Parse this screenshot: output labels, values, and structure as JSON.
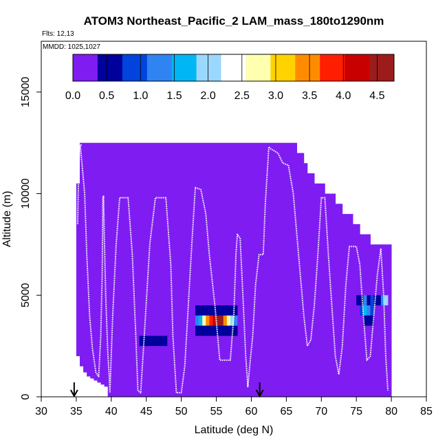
{
  "chart_data": {
    "type": "heatmap",
    "title": "ATOM3 Northeast_Pacific_2 LAM_mass_180to1290nm",
    "flights_text": "Flts: 12,13",
    "mmdd_text": "MMDD: 1025,1027",
    "xlabel": "Latitude (deg N)",
    "ylabel": "Altitude (m)",
    "xlim": [
      30,
      85
    ],
    "ylim": [
      0,
      17500
    ],
    "xticks": [
      30,
      35,
      40,
      45,
      50,
      55,
      60,
      65,
      70,
      75,
      80,
      85
    ],
    "yticks": [
      0,
      5000,
      10000,
      15000
    ],
    "colorbar": {
      "range": [
        0,
        4.75
      ],
      "ticks": [
        0.0,
        0.5,
        1.0,
        1.5,
        2.0,
        2.5,
        3.0,
        3.5,
        4.0,
        4.5
      ],
      "tick_labels": [
        "0.0",
        "0.5",
        "1.0",
        "1.5",
        "2.0",
        "2.5",
        "3.0",
        "3.5",
        "4.0",
        "4.5"
      ],
      "colors": [
        "#7f1cf2",
        "#00009c",
        "#0044dd",
        "#2f84f2",
        "#00b6f5",
        "#9ad8ff",
        "#ffffff",
        "#ffffb0",
        "#ffd200",
        "#ff8c00",
        "#ff1e00",
        "#c80000",
        "#9c1c1c"
      ]
    },
    "arrows_lat": [
      34.7,
      61.2
    ],
    "background_value": 0.05,
    "coverage_columns": [
      [
        35,
        2000,
        10500
      ],
      [
        35.5,
        1500,
        12500
      ],
      [
        36,
        1200,
        12500
      ],
      [
        36.5,
        1000,
        12500
      ],
      [
        37,
        900,
        12500
      ],
      [
        37.5,
        800,
        12500
      ],
      [
        38,
        700,
        12500
      ],
      [
        38.5,
        600,
        12500
      ],
      [
        39,
        500,
        12500
      ],
      [
        39.5,
        0,
        12500
      ],
      [
        40,
        0,
        12500
      ],
      [
        40.5,
        0,
        12500
      ],
      [
        41,
        0,
        12500
      ],
      [
        41.5,
        0,
        12500
      ],
      [
        42,
        0,
        12500
      ],
      [
        42.5,
        0,
        12500
      ],
      [
        43,
        0,
        12500
      ],
      [
        43.5,
        0,
        12500
      ],
      [
        44,
        0,
        12500
      ],
      [
        44.5,
        0,
        12500
      ],
      [
        45,
        0,
        12500
      ],
      [
        45.5,
        0,
        12500
      ],
      [
        46,
        0,
        12500
      ],
      [
        46.5,
        0,
        12500
      ],
      [
        47,
        0,
        12500
      ],
      [
        47.5,
        0,
        12500
      ],
      [
        48,
        0,
        12500
      ],
      [
        48.5,
        0,
        12500
      ],
      [
        49,
        0,
        12500
      ],
      [
        49.5,
        0,
        12500
      ],
      [
        50,
        0,
        12500
      ],
      [
        50.5,
        0,
        12500
      ],
      [
        51,
        0,
        12500
      ],
      [
        51.5,
        0,
        12500
      ],
      [
        52,
        0,
        12500
      ],
      [
        52.5,
        0,
        12500
      ],
      [
        53,
        0,
        12500
      ],
      [
        53.5,
        0,
        12500
      ],
      [
        54,
        0,
        12500
      ],
      [
        54.5,
        0,
        12500
      ],
      [
        55,
        0,
        12500
      ],
      [
        55.5,
        0,
        12500
      ],
      [
        56,
        0,
        12500
      ],
      [
        56.5,
        0,
        12500
      ],
      [
        57,
        0,
        12500
      ],
      [
        57.5,
        0,
        12500
      ],
      [
        58,
        0,
        12500
      ],
      [
        58.5,
        0,
        12500
      ],
      [
        59,
        0,
        12500
      ],
      [
        59.5,
        0,
        12500
      ],
      [
        60,
        0,
        12500
      ],
      [
        60.5,
        0,
        12500
      ],
      [
        61,
        0,
        12500
      ],
      [
        61.5,
        0,
        12500
      ],
      [
        62,
        0,
        12500
      ],
      [
        62.5,
        0,
        12500
      ],
      [
        63,
        0,
        12500
      ],
      [
        63.5,
        0,
        12500
      ],
      [
        64,
        0,
        12500
      ],
      [
        64.5,
        0,
        12500
      ],
      [
        65,
        0,
        12500
      ],
      [
        65.5,
        0,
        12500
      ],
      [
        66,
        0,
        12500
      ],
      [
        66.5,
        0,
        12000
      ],
      [
        67,
        0,
        12000
      ],
      [
        67.5,
        0,
        11500
      ],
      [
        68,
        0,
        11000
      ],
      [
        68.5,
        0,
        11000
      ],
      [
        69,
        0,
        10500
      ],
      [
        69.5,
        0,
        10500
      ],
      [
        70,
        0,
        10500
      ],
      [
        70.5,
        0,
        10000
      ],
      [
        71,
        0,
        10000
      ],
      [
        71.5,
        0,
        10000
      ],
      [
        72,
        0,
        9500
      ],
      [
        72.5,
        0,
        9500
      ],
      [
        73,
        0,
        9000
      ],
      [
        73.5,
        0,
        9000
      ],
      [
        74,
        0,
        9000
      ],
      [
        74.5,
        0,
        8500
      ],
      [
        75,
        0,
        8500
      ],
      [
        75.5,
        0,
        8000
      ],
      [
        76,
        0,
        8000
      ],
      [
        76.5,
        0,
        8000
      ],
      [
        77,
        0,
        7500
      ],
      [
        77.5,
        0,
        7500
      ],
      [
        78,
        0,
        7500
      ],
      [
        78.5,
        0,
        7500
      ],
      [
        79,
        0,
        7500
      ],
      [
        79.5,
        0,
        7500
      ]
    ],
    "hotspots": [
      {
        "lat": 44,
        "alt_min": 2500,
        "alt_max": 3000,
        "value": 0.4
      },
      {
        "lat": 44.5,
        "alt_min": 2500,
        "alt_max": 3000,
        "value": 0.45
      },
      {
        "lat": 45,
        "alt_min": 2500,
        "alt_max": 3000,
        "value": 0.5
      },
      {
        "lat": 45.5,
        "alt_min": 2500,
        "alt_max": 3000,
        "value": 0.45
      },
      {
        "lat": 46,
        "alt_min": 2500,
        "alt_max": 3000,
        "value": 0.5
      },
      {
        "lat": 46.5,
        "alt_min": 2500,
        "alt_max": 3000,
        "value": 0.45
      },
      {
        "lat": 47,
        "alt_min": 2500,
        "alt_max": 3000,
        "value": 0.4
      },
      {
        "lat": 47.5,
        "alt_min": 2500,
        "alt_max": 3000,
        "value": 0.4
      },
      {
        "lat": 48,
        "alt_min": 2500,
        "alt_max": 3000,
        "value": 0.3
      },
      {
        "lat": 52,
        "alt_min": 4000,
        "alt_max": 4500,
        "value": 0.4
      },
      {
        "lat": 52.5,
        "alt_min": 4000,
        "alt_max": 4500,
        "value": 0.45
      },
      {
        "lat": 53,
        "alt_min": 4000,
        "alt_max": 4500,
        "value": 0.5
      },
      {
        "lat": 53.5,
        "alt_min": 4000,
        "alt_max": 4500,
        "value": 0.55
      },
      {
        "lat": 54,
        "alt_min": 4000,
        "alt_max": 4500,
        "value": 0.6
      },
      {
        "lat": 54.5,
        "alt_min": 4000,
        "alt_max": 4500,
        "value": 0.55
      },
      {
        "lat": 55,
        "alt_min": 4000,
        "alt_max": 4500,
        "value": 0.5
      },
      {
        "lat": 55.5,
        "alt_min": 4000,
        "alt_max": 4500,
        "value": 0.55
      },
      {
        "lat": 56,
        "alt_min": 4000,
        "alt_max": 4500,
        "value": 0.5
      },
      {
        "lat": 56.5,
        "alt_min": 4000,
        "alt_max": 4500,
        "value": 0.45
      },
      {
        "lat": 57,
        "alt_min": 4000,
        "alt_max": 4500,
        "value": 0.4
      },
      {
        "lat": 57.5,
        "alt_min": 4000,
        "alt_max": 4500,
        "value": 0.4
      },
      {
        "lat": 52,
        "alt_min": 3500,
        "alt_max": 4000,
        "value": 1.4
      },
      {
        "lat": 52.5,
        "alt_min": 3500,
        "alt_max": 4000,
        "value": 1.8
      },
      {
        "lat": 53,
        "alt_min": 3500,
        "alt_max": 4000,
        "value": 2.6
      },
      {
        "lat": 53.5,
        "alt_min": 3500,
        "alt_max": 4000,
        "value": 3.3
      },
      {
        "lat": 54,
        "alt_min": 3500,
        "alt_max": 4000,
        "value": 3.8
      },
      {
        "lat": 54.5,
        "alt_min": 3500,
        "alt_max": 4000,
        "value": 4.2
      },
      {
        "lat": 55,
        "alt_min": 3500,
        "alt_max": 4000,
        "value": 4.6
      },
      {
        "lat": 55.5,
        "alt_min": 3500,
        "alt_max": 4000,
        "value": 4.4
      },
      {
        "lat": 56,
        "alt_min": 3500,
        "alt_max": 4000,
        "value": 3.6
      },
      {
        "lat": 56.5,
        "alt_min": 3500,
        "alt_max": 4000,
        "value": 2.7
      },
      {
        "lat": 57,
        "alt_min": 3500,
        "alt_max": 4000,
        "value": 1.9
      },
      {
        "lat": 57.5,
        "alt_min": 3500,
        "alt_max": 4000,
        "value": 1.3
      },
      {
        "lat": 52,
        "alt_min": 3000,
        "alt_max": 3500,
        "value": 0.4
      },
      {
        "lat": 52.5,
        "alt_min": 3000,
        "alt_max": 3500,
        "value": 0.45
      },
      {
        "lat": 53,
        "alt_min": 3000,
        "alt_max": 3500,
        "value": 0.5
      },
      {
        "lat": 53.5,
        "alt_min": 3000,
        "alt_max": 3500,
        "value": 0.55
      },
      {
        "lat": 54,
        "alt_min": 3000,
        "alt_max": 3500,
        "value": 0.6
      },
      {
        "lat": 54.5,
        "alt_min": 3000,
        "alt_max": 3500,
        "value": 0.55
      },
      {
        "lat": 55,
        "alt_min": 3000,
        "alt_max": 3500,
        "value": 0.5
      },
      {
        "lat": 55.5,
        "alt_min": 3000,
        "alt_max": 3500,
        "value": 0.55
      },
      {
        "lat": 56,
        "alt_min": 3000,
        "alt_max": 3500,
        "value": 0.5
      },
      {
        "lat": 56.5,
        "alt_min": 3000,
        "alt_max": 3500,
        "value": 0.45
      },
      {
        "lat": 57,
        "alt_min": 3000,
        "alt_max": 3500,
        "value": 0.4
      },
      {
        "lat": 57.5,
        "alt_min": 3000,
        "alt_max": 3500,
        "value": 0.4
      },
      {
        "lat": 75,
        "alt_min": 4500,
        "alt_max": 5000,
        "value": 0.7
      },
      {
        "lat": 75.5,
        "alt_min": 4500,
        "alt_max": 5000,
        "value": 0.5
      },
      {
        "lat": 76,
        "alt_min": 4500,
        "alt_max": 5000,
        "value": 1.2
      },
      {
        "lat": 76.5,
        "alt_min": 4500,
        "alt_max": 5000,
        "value": 0.5
      },
      {
        "lat": 77,
        "alt_min": 4500,
        "alt_max": 5000,
        "value": 1.0
      },
      {
        "lat": 77.5,
        "alt_min": 4500,
        "alt_max": 5000,
        "value": 0.45
      },
      {
        "lat": 78,
        "alt_min": 4500,
        "alt_max": 5000,
        "value": 0.5
      },
      {
        "lat": 78.5,
        "alt_min": 4500,
        "alt_max": 5000,
        "value": 1.3
      },
      {
        "lat": 79,
        "alt_min": 4500,
        "alt_max": 5000,
        "value": 2.0
      },
      {
        "lat": 75.5,
        "alt_min": 4000,
        "alt_max": 4500,
        "value": 0.9
      },
      {
        "lat": 76,
        "alt_min": 4000,
        "alt_max": 4500,
        "value": 1.5
      },
      {
        "lat": 76.5,
        "alt_min": 4000,
        "alt_max": 4500,
        "value": 1.1
      },
      {
        "lat": 77,
        "alt_min": 4000,
        "alt_max": 4500,
        "value": 0.8
      },
      {
        "lat": 76,
        "alt_min": 3500,
        "alt_max": 4000,
        "value": 0.5
      },
      {
        "lat": 76.5,
        "alt_min": 3500,
        "alt_max": 4000,
        "value": 0.4
      },
      {
        "lat": 77,
        "alt_min": 3500,
        "alt_max": 4000,
        "value": 0.4
      }
    ],
    "flight_track": {
      "lat": [
        35.2,
        35.3,
        35.5,
        35.7,
        35.6,
        36.2,
        36.5,
        36.9,
        37.3,
        37.8,
        38.2,
        38.5,
        38.7,
        38.8,
        38.9,
        39.0,
        39.2,
        39.5,
        39.7,
        39.8,
        40.2,
        40.7,
        41.2,
        41.8,
        42.4,
        43.0,
        43.5,
        43.8,
        44.2,
        44.8,
        45.5,
        46.3,
        47.0,
        47.8,
        48.5,
        48.8,
        49.3,
        50.0,
        50.5,
        51.0,
        51.5,
        52.0,
        52.8,
        53.5,
        54.0,
        54.8,
        55.5,
        56.0,
        56.5,
        57.0,
        57.5,
        57.8,
        58.0,
        58.4,
        58.8,
        59.2,
        59.5,
        59.8,
        60.2,
        60.6,
        61.1,
        61.7,
        62.0,
        62.5,
        62.8,
        63.3,
        63.8,
        64.5,
        65.3,
        66.0,
        66.5,
        67.0,
        67.5,
        68.0,
        68.5,
        69.0,
        69.5,
        70.0,
        70.5,
        71.0,
        71.5,
        72.0,
        72.5,
        73.0,
        73.5,
        74.0,
        74.5,
        75.0,
        75.5,
        76.0,
        76.5,
        77.0,
        77.5,
        78.0,
        78.5,
        78.9,
        79.2,
        79.5
      ],
      "alt": [
        8500,
        10500,
        12400,
        12400,
        12300,
        10000,
        7000,
        4000,
        2400,
        1200,
        1000,
        3000,
        6000,
        9800,
        9900,
        8000,
        5000,
        2200,
        1000,
        200,
        4000,
        7500,
        9800,
        9800,
        9800,
        7000,
        3000,
        300,
        200,
        3500,
        7500,
        9800,
        9800,
        9800,
        6500,
        3000,
        200,
        200,
        1500,
        4500,
        7500,
        10300,
        10200,
        9000,
        7000,
        4500,
        1800,
        1800,
        1800,
        1800,
        4000,
        7000,
        8000,
        7800,
        5000,
        2000,
        500,
        1600,
        3000,
        5500,
        7000,
        7000,
        9500,
        12300,
        12200,
        12100,
        12000,
        11500,
        11400,
        10000,
        8000,
        6000,
        4000,
        2500,
        2800,
        4500,
        7000,
        9800,
        9800,
        7000,
        4500,
        2000,
        1100,
        2500,
        5500,
        7400,
        7400,
        7400,
        6500,
        4000,
        1800,
        2000,
        4000,
        6000,
        7300,
        5000,
        2000,
        300
      ]
    }
  }
}
